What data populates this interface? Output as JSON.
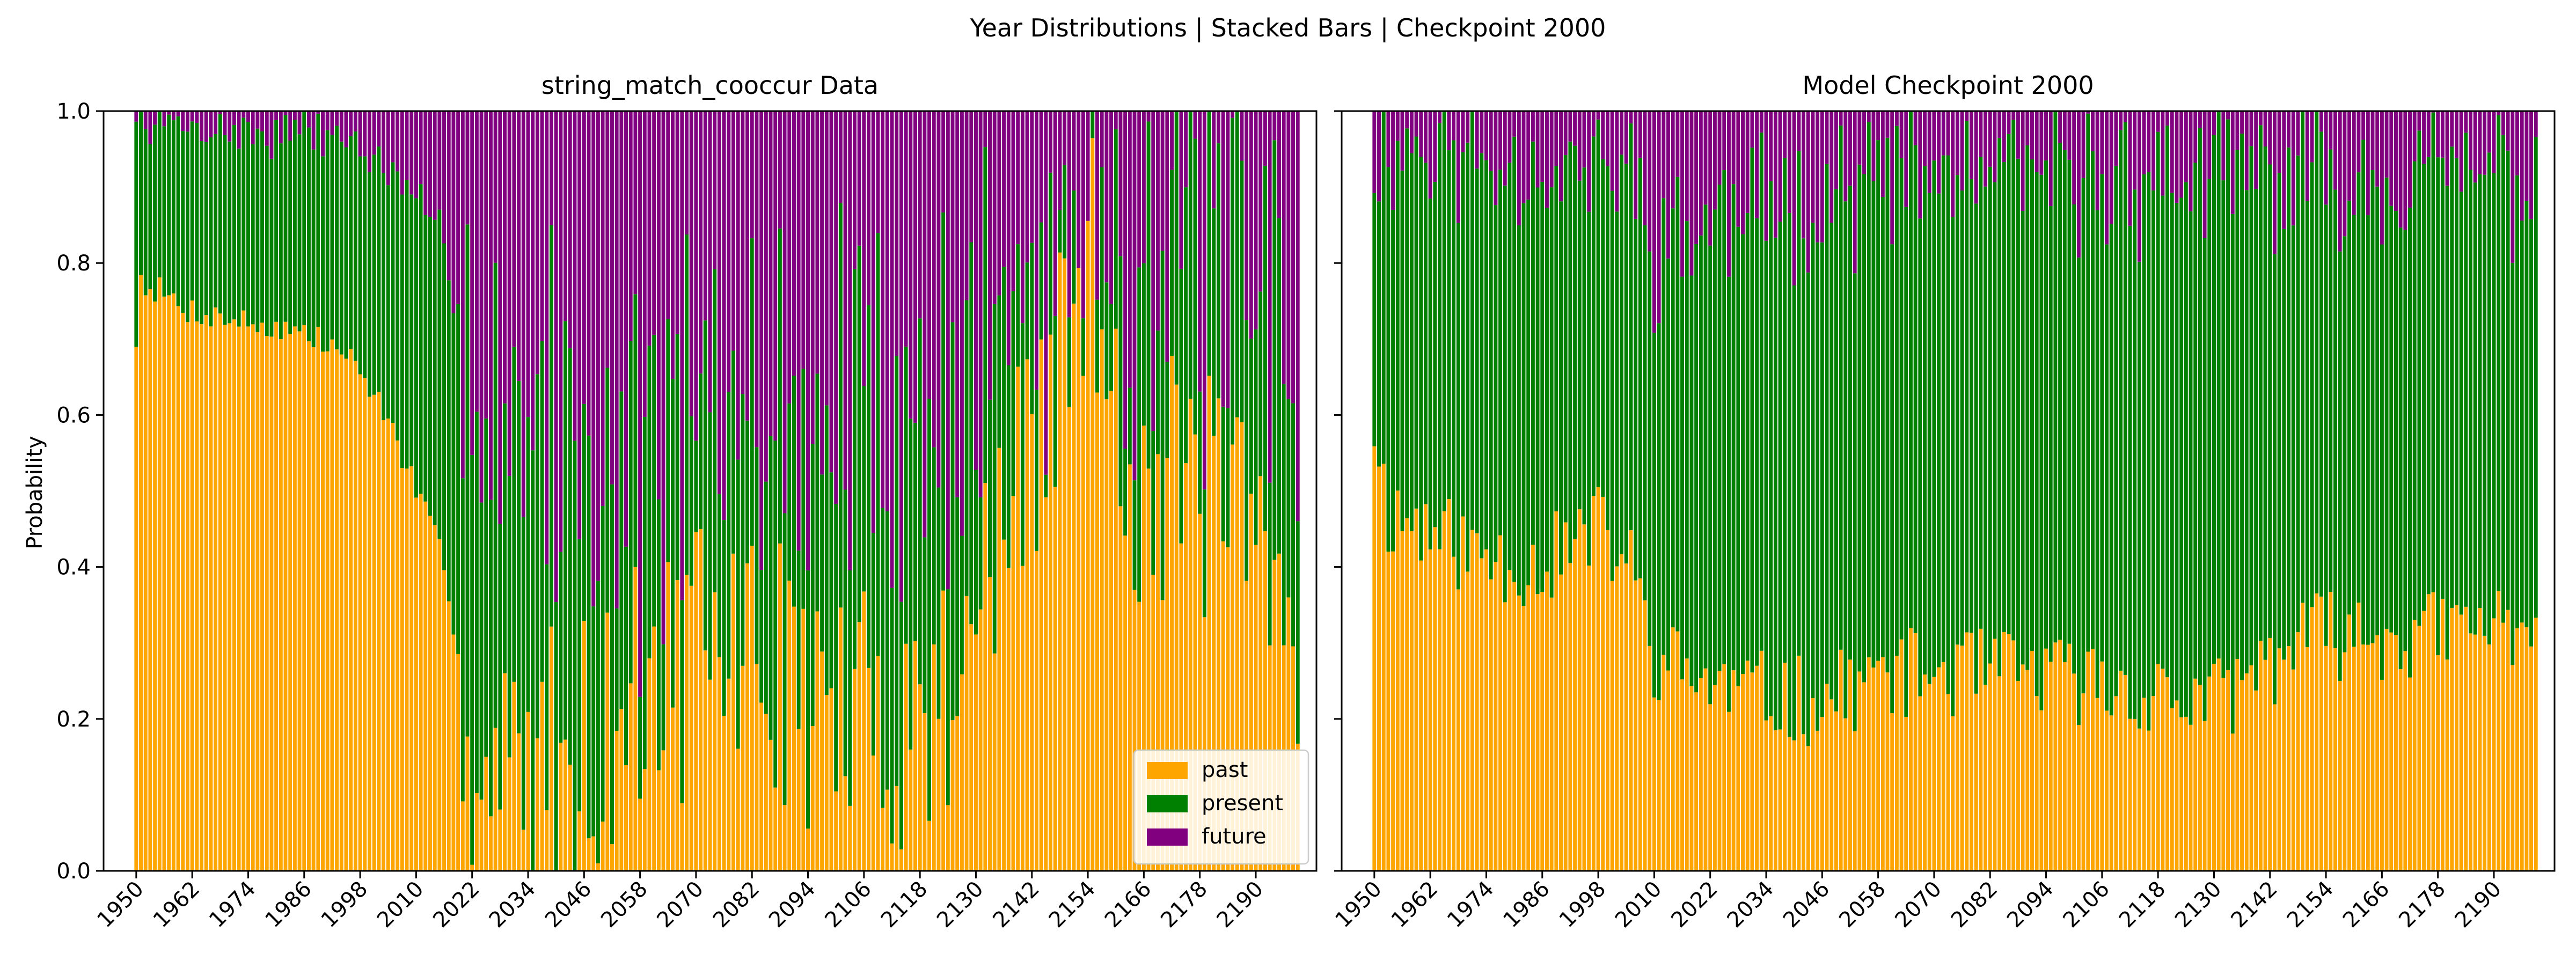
{
  "figure_title": "Year Distributions | Stacked Bars | Checkpoint 2000",
  "colors": {
    "past": "#FFA500",
    "present": "#008000",
    "future": "#800080"
  },
  "chart_data": [
    {
      "type": "bar",
      "stacked": true,
      "title": "string_match_cooccur Data",
      "xlabel": "",
      "ylabel": "Probability",
      "ylim": [
        0,
        1
      ],
      "yticks": [
        "0.0",
        "0.2",
        "0.4",
        "0.6",
        "0.8",
        "1.0"
      ],
      "xlim": [
        1943,
        2203
      ],
      "xticks": [
        "1950",
        "1962",
        "1974",
        "1986",
        "1998",
        "2010",
        "2022",
        "2034",
        "2046",
        "2058",
        "2070",
        "2082",
        "2094",
        "2106",
        "2118",
        "2130",
        "2142",
        "2154",
        "2166",
        "2178",
        "2190"
      ],
      "legend": {
        "position": "lower-right",
        "entries": [
          "past",
          "present",
          "future"
        ]
      },
      "x_range": [
        1950,
        2199
      ],
      "keyframes": [
        {
          "x": 1950,
          "past": 0.7,
          "present": 0.28
        },
        {
          "x": 1951,
          "past": 0.78,
          "present": 0.2
        },
        {
          "x": 1960,
          "past": 0.74,
          "present": 0.24
        },
        {
          "x": 1975,
          "past": 0.72,
          "present": 0.25
        },
        {
          "x": 1985,
          "past": 0.71,
          "present": 0.26
        },
        {
          "x": 1995,
          "past": 0.68,
          "present": 0.29
        },
        {
          "x": 2000,
          "past": 0.64,
          "present": 0.3
        },
        {
          "x": 2005,
          "past": 0.58,
          "present": 0.33
        },
        {
          "x": 2010,
          "past": 0.5,
          "present": 0.38
        },
        {
          "x": 2015,
          "past": 0.42,
          "present": 0.42
        },
        {
          "x": 2019,
          "past": 0.3,
          "present": 0.45
        },
        {
          "x": 2022,
          "past": 0.12,
          "present": 0.52
        },
        {
          "x": 2024,
          "past": 0.08,
          "present": 0.55
        },
        {
          "x": 2035,
          "past": 0.15,
          "present": 0.45
        },
        {
          "x": 2050,
          "past": 0.18,
          "present": 0.35
        },
        {
          "x": 2060,
          "past": 0.25,
          "present": 0.3
        },
        {
          "x": 2080,
          "past": 0.3,
          "present": 0.3
        },
        {
          "x": 2100,
          "past": 0.2,
          "present": 0.4
        },
        {
          "x": 2120,
          "past": 0.2,
          "present": 0.4
        },
        {
          "x": 2140,
          "past": 0.5,
          "present": 0.25
        },
        {
          "x": 2155,
          "past": 0.8,
          "present": 0.1
        },
        {
          "x": 2165,
          "past": 0.5,
          "present": 0.3
        },
        {
          "x": 2180,
          "past": 0.5,
          "present": 0.3
        },
        {
          "x": 2199,
          "past": 0.3,
          "present": 0.4
        }
      ],
      "noise": [
        {
          "from": 1950,
          "to": 2019,
          "amount": 0.02
        },
        {
          "from": 2020,
          "to": 2199,
          "amount": 0.18
        }
      ],
      "seed": 7
    },
    {
      "type": "bar",
      "stacked": true,
      "title": "Model Checkpoint 2000",
      "xlabel": "",
      "ylabel": "",
      "ylim": [
        0,
        1
      ],
      "xlim": [
        1943,
        2203
      ],
      "xticks": [
        "1950",
        "1962",
        "1974",
        "1986",
        "1998",
        "2010",
        "2022",
        "2034",
        "2046",
        "2058",
        "2070",
        "2082",
        "2094",
        "2106",
        "2118",
        "2130",
        "2142",
        "2154",
        "2166",
        "2178",
        "2190"
      ],
      "legend": null,
      "x_range": [
        1950,
        2199
      ],
      "keyframes": [
        {
          "x": 1950,
          "past": 0.59,
          "present": 0.36
        },
        {
          "x": 1953,
          "past": 0.47,
          "present": 0.48
        },
        {
          "x": 1958,
          "past": 0.46,
          "present": 0.5
        },
        {
          "x": 1970,
          "past": 0.42,
          "present": 0.52
        },
        {
          "x": 1985,
          "past": 0.4,
          "present": 0.53
        },
        {
          "x": 1998,
          "past": 0.45,
          "present": 0.47
        },
        {
          "x": 2005,
          "past": 0.4,
          "present": 0.52
        },
        {
          "x": 2010,
          "past": 0.28,
          "present": 0.54
        },
        {
          "x": 2025,
          "past": 0.24,
          "present": 0.62
        },
        {
          "x": 2045,
          "past": 0.22,
          "present": 0.67
        },
        {
          "x": 2060,
          "past": 0.26,
          "present": 0.65
        },
        {
          "x": 2090,
          "past": 0.26,
          "present": 0.65
        },
        {
          "x": 2130,
          "past": 0.22,
          "present": 0.69
        },
        {
          "x": 2150,
          "past": 0.31,
          "present": 0.6
        },
        {
          "x": 2175,
          "past": 0.31,
          "present": 0.61
        },
        {
          "x": 2199,
          "past": 0.33,
          "present": 0.58
        }
      ],
      "noise": [
        {
          "from": 1950,
          "to": 2199,
          "amount": 0.06
        }
      ],
      "seed": 11
    }
  ]
}
